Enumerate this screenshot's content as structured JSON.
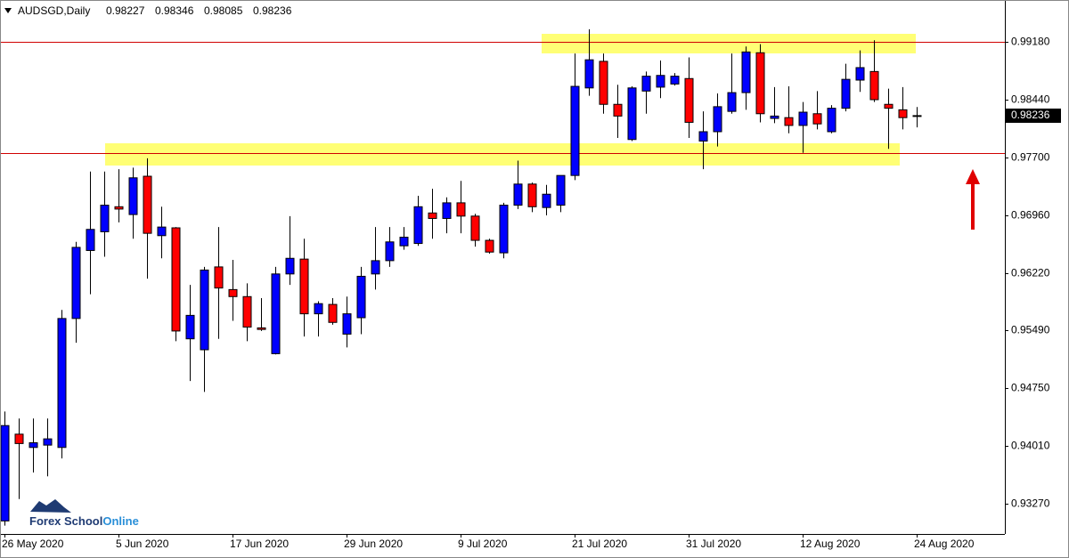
{
  "chart_data": {
    "type": "candlestick",
    "title": "AUDSGD,Daily",
    "categories": [
      "26 May 2020",
      null,
      null,
      null,
      null,
      null,
      null,
      null,
      "5 Jun 2020",
      null,
      null,
      null,
      null,
      null,
      null,
      null,
      "17 Jun 2020",
      null,
      null,
      null,
      null,
      null,
      null,
      null,
      "29 Jun 2020",
      null,
      null,
      null,
      null,
      null,
      null,
      null,
      "9 Jul 2020",
      null,
      null,
      null,
      null,
      null,
      null,
      null,
      "21 Jul 2020",
      null,
      null,
      null,
      null,
      null,
      null,
      null,
      "31 Jul 2020",
      null,
      null,
      null,
      null,
      null,
      null,
      null,
      "12 Aug 2020",
      null,
      null,
      null,
      null,
      null,
      null,
      null,
      "24 Aug 2020"
    ],
    "open": [
      0.9305,
      0.9416,
      0.9399,
      0.9402,
      0.9399,
      0.9564,
      0.9651,
      0.9675,
      0.9707,
      0.9697,
      0.9746,
      0.967,
      0.968,
      0.9538,
      0.9524,
      0.963,
      0.9601,
      0.9592,
      0.9552,
      0.9519,
      0.9621,
      0.964,
      0.957,
      0.9582,
      0.9544,
      0.9565,
      0.9621,
      0.9638,
      0.9657,
      0.966,
      0.9699,
      0.9692,
      0.9712,
      0.9695,
      0.9664,
      0.9648,
      0.9709,
      0.9736,
      0.9706,
      0.9709,
      0.9747,
      0.9859,
      0.9893,
      0.9838,
      0.9793,
      0.9855,
      0.986,
      0.9864,
      0.9871,
      0.9791,
      0.9803,
      0.9829,
      0.9853,
      0.9904,
      0.982,
      0.9821,
      0.9811,
      0.9826,
      0.9803,
      0.9833,
      0.9869,
      0.988,
      0.9838,
      0.9831,
      0.98227
    ],
    "high": [
      0.9445,
      0.9436,
      0.9436,
      0.9436,
      0.9575,
      0.9662,
      0.9752,
      0.9752,
      0.9755,
      0.9757,
      0.9769,
      0.9707,
      0.9681,
      0.9607,
      0.963,
      0.9681,
      0.9639,
      0.9609,
      0.959,
      0.963,
      0.9695,
      0.9666,
      0.9586,
      0.959,
      0.9592,
      0.963,
      0.9681,
      0.9681,
      0.9681,
      0.9721,
      0.973,
      0.9719,
      0.974,
      0.9698,
      0.9666,
      0.9712,
      0.9766,
      0.9738,
      0.9735,
      0.9747,
      0.9903,
      0.9934,
      0.9903,
      0.9863,
      0.9861,
      0.988,
      0.9894,
      0.9878,
      0.9898,
      0.9829,
      0.9852,
      0.9903,
      0.9912,
      0.9915,
      0.986,
      0.9861,
      0.9841,
      0.9855,
      0.9837,
      0.989,
      0.9907,
      0.992,
      0.9858,
      0.986,
      0.98346
    ],
    "low": [
      0.9299,
      0.9333,
      0.9367,
      0.9362,
      0.9385,
      0.9533,
      0.9595,
      0.9643,
      0.9687,
      0.9666,
      0.9615,
      0.9641,
      0.9535,
      0.9484,
      0.947,
      0.9538,
      0.9561,
      0.9535,
      0.9548,
      0.9518,
      0.9607,
      0.9541,
      0.9541,
      0.9556,
      0.9527,
      0.9544,
      0.9601,
      0.963,
      0.9652,
      0.9657,
      0.9666,
      0.9673,
      0.9673,
      0.9656,
      0.9647,
      0.9641,
      0.9704,
      0.97,
      0.9696,
      0.97,
      0.9741,
      0.9849,
      0.9826,
      0.9795,
      0.9791,
      0.9826,
      0.9846,
      0.9862,
      0.9795,
      0.9755,
      0.9784,
      0.9826,
      0.9831,
      0.9815,
      0.9814,
      0.9801,
      0.9776,
      0.9806,
      0.9801,
      0.9829,
      0.9854,
      0.9841,
      0.9781,
      0.9806,
      0.98085
    ],
    "close": [
      0.9427,
      0.9404,
      0.9405,
      0.941,
      0.9564,
      0.9655,
      0.9678,
      0.9709,
      0.9704,
      0.9744,
      0.9673,
      0.9681,
      0.9548,
      0.9568,
      0.9626,
      0.9603,
      0.9592,
      0.9553,
      0.955,
      0.9621,
      0.9641,
      0.957,
      0.9583,
      0.9559,
      0.957,
      0.9618,
      0.9638,
      0.9662,
      0.9668,
      0.9707,
      0.9692,
      0.9712,
      0.9695,
      0.9664,
      0.9649,
      0.9709,
      0.9736,
      0.9707,
      0.9723,
      0.9747,
      0.9861,
      0.9895,
      0.9838,
      0.9823,
      0.9859,
      0.9874,
      0.9875,
      0.9874,
      0.9815,
      0.9803,
      0.9835,
      0.9853,
      0.9905,
      0.9826,
      0.9823,
      0.9811,
      0.9828,
      0.9813,
      0.9833,
      0.987,
      0.9885,
      0.9844,
      0.9833,
      0.9821,
      0.98236
    ],
    "up_color": "#0000ff",
    "down_color": "#ff0000",
    "ylim": [
      0.92883,
      0.99715
    ],
    "yticks": [
      {
        "value": 0.9918,
        "label": "0.99180"
      },
      {
        "value": 0.9844,
        "label": "0.98440"
      },
      {
        "value": 0.977,
        "label": "0.97700"
      },
      {
        "value": 0.9696,
        "label": "0.96960"
      },
      {
        "value": 0.9622,
        "label": "0.96220"
      },
      {
        "value": 0.9549,
        "label": "0.95490"
      },
      {
        "value": 0.9475,
        "label": "0.94750"
      },
      {
        "value": 0.9401,
        "label": "0.94010"
      },
      {
        "value": 0.9327,
        "label": "0.93270"
      }
    ],
    "hlines": [
      0.9918,
      0.9776
    ],
    "hline_color": "#d00000",
    "watermark": [
      "Forex School",
      "Online"
    ]
  }
}
